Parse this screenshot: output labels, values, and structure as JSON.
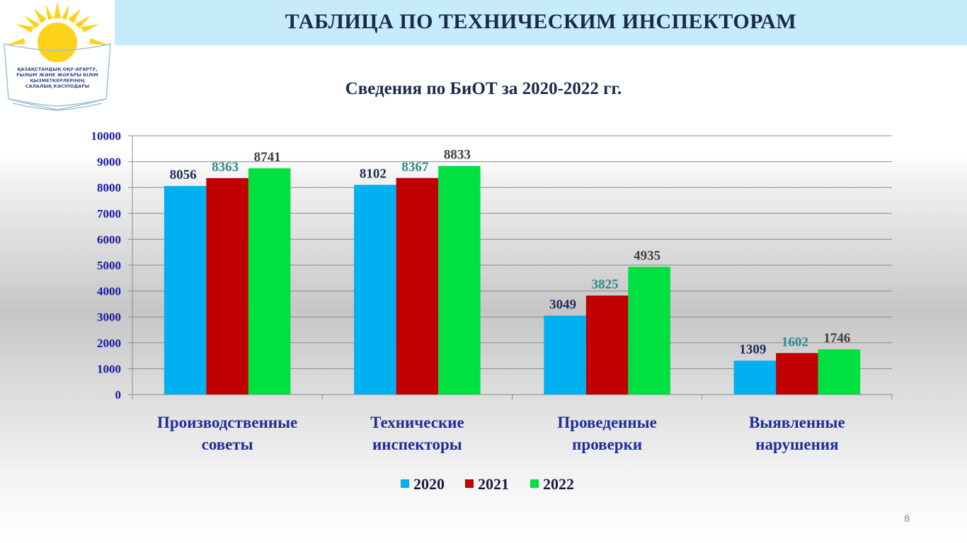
{
  "header": {
    "title": "ТАБЛИЦА ПО ТЕХНИЧЕСКИМ ИНСПЕКТОРАМ",
    "logo_text": [
      "ҚАЗАҚСТАНДЫҚ ОҚУ-АҒАРТУ,",
      "ҒЫЛЫМ ЖӘНЕ ЖОҒАРЫ БІЛІМ",
      "ҚЫЗМЕТКЕРЛЕРІНІҢ",
      "САЛАЛЫҚ КӘСІПОДАҒЫ"
    ]
  },
  "page_number": "8",
  "colors": {
    "2020": "#00b0f0",
    "2021": "#c00000",
    "2022": "#00e040",
    "label2020": "#1f2d5a",
    "label2021": "#2e8b8b",
    "label2022": "#404040",
    "category": "#1f2d9a",
    "axis": "#1a1aa0"
  },
  "chart_data": {
    "type": "bar",
    "title": "Сведения по БиОТ за 2020-2022 гг.",
    "categories": [
      [
        "Производственные",
        "советы"
      ],
      [
        "Технические",
        "инспекторы"
      ],
      [
        "Проведенные",
        "проверки"
      ],
      [
        "Выявленные",
        "нарушения"
      ]
    ],
    "series": [
      {
        "name": "2020",
        "values": [
          8056,
          8102,
          3049,
          1309
        ]
      },
      {
        "name": "2021",
        "values": [
          8363,
          8367,
          3825,
          1602
        ]
      },
      {
        "name": "2022",
        "values": [
          8741,
          8833,
          4935,
          1746
        ]
      }
    ],
    "ylim": [
      0,
      10000
    ],
    "yticks": [
      0,
      1000,
      2000,
      3000,
      4000,
      5000,
      6000,
      7000,
      8000,
      9000,
      10000
    ],
    "grid": true,
    "legend": "bottom"
  }
}
